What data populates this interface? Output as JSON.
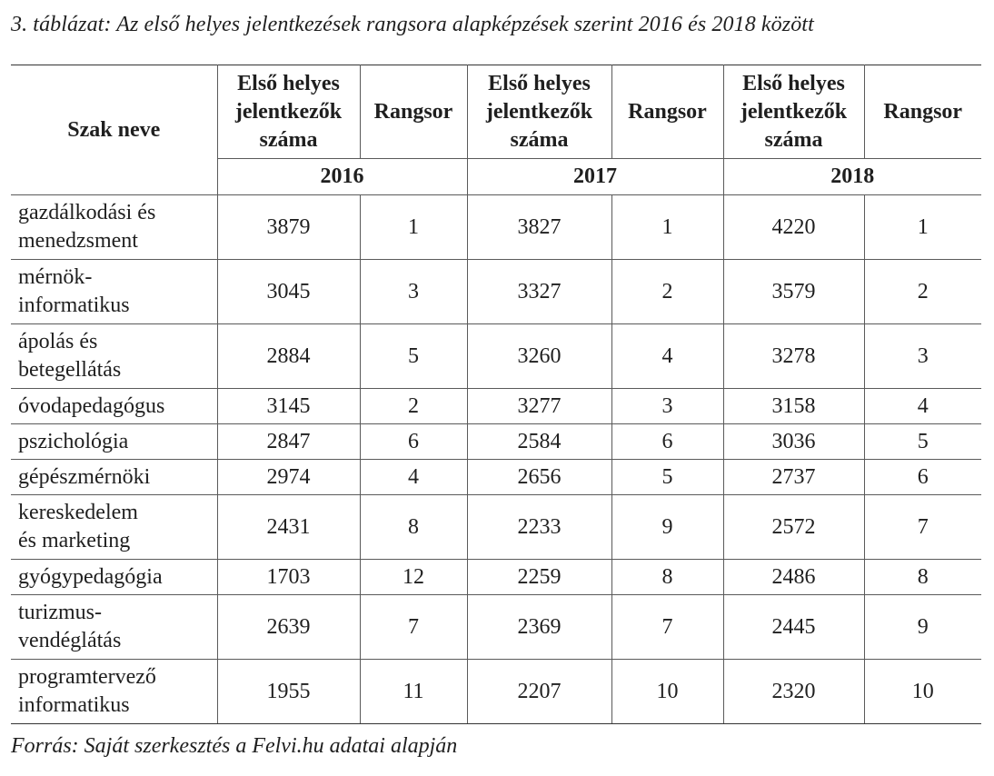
{
  "caption": "3. táblázat: Az első helyes jelentkezések rangsora alapképzések szerint 2016 és 2018 között",
  "source": "Forrás: Saját szerkesztés a Felvi.hu adatai alapján",
  "header": {
    "name_col": "Szak neve",
    "count_col": [
      "Első helyes",
      "jelentkezők",
      "száma"
    ],
    "rank_col": "Rangsor",
    "years": [
      "2016",
      "2017",
      "2018"
    ]
  },
  "rows": [
    {
      "name": [
        "gazdálkodási és",
        "menedzsment"
      ],
      "v": [
        "3879",
        "1",
        "3827",
        "1",
        "4220",
        "1"
      ]
    },
    {
      "name": [
        "mérnök-",
        "informatikus"
      ],
      "v": [
        "3045",
        "3",
        "3327",
        "2",
        "3579",
        "2"
      ]
    },
    {
      "name": [
        "ápolás és",
        "betegellátás"
      ],
      "v": [
        "2884",
        "5",
        "3260",
        "4",
        "3278",
        "3"
      ]
    },
    {
      "name": [
        "óvodapedagógus"
      ],
      "v": [
        "3145",
        "2",
        "3277",
        "3",
        "3158",
        "4"
      ]
    },
    {
      "name": [
        "pszichológia"
      ],
      "v": [
        "2847",
        "6",
        "2584",
        "6",
        "3036",
        "5"
      ]
    },
    {
      "name": [
        "gépészmérnöki"
      ],
      "v": [
        "2974",
        "4",
        "2656",
        "5",
        "2737",
        "6"
      ]
    },
    {
      "name": [
        "kereskedelem",
        "és marketing"
      ],
      "v": [
        "2431",
        "8",
        "2233",
        "9",
        "2572",
        "7"
      ]
    },
    {
      "name": [
        "gyógypedagógia"
      ],
      "v": [
        "1703",
        "12",
        "2259",
        "8",
        "2486",
        "8"
      ]
    },
    {
      "name": [
        "turizmus-",
        "vendéglátás"
      ],
      "v": [
        "2639",
        "7",
        "2369",
        "7",
        "2445",
        "9"
      ]
    },
    {
      "name": [
        "programtervező",
        "informatikus"
      ],
      "v": [
        "1955",
        "11",
        "2207",
        "10",
        "2320",
        "10"
      ]
    }
  ]
}
